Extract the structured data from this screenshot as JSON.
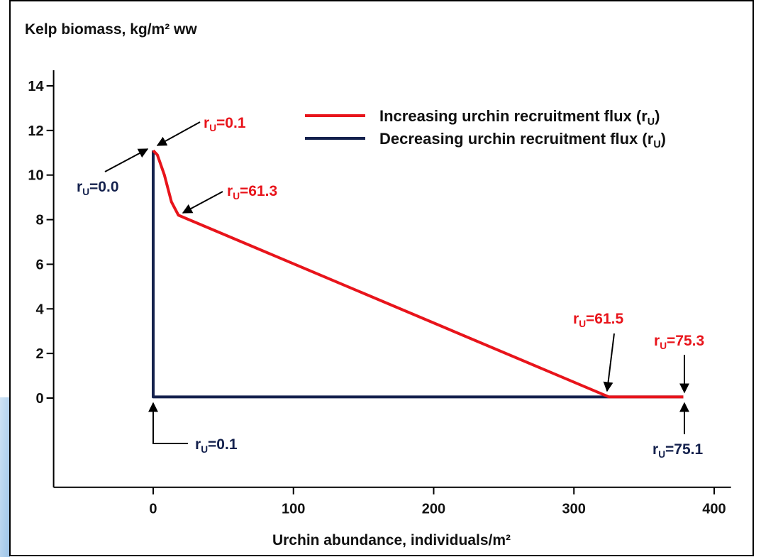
{
  "chart_data": {
    "type": "line",
    "y_axis_label": "Kelp biomass, kg/m² ww",
    "x_axis_label": "Urchin abundance, individuals/m²",
    "xlim": [
      -71,
      412
    ],
    "ylim": [
      -4,
      14.7
    ],
    "xticks": [
      0,
      100,
      200,
      300,
      400
    ],
    "yticks": [
      0,
      2,
      4,
      6,
      8,
      10,
      12,
      14
    ],
    "legend": "upper right",
    "series": [
      {
        "name": "Decreasing urchin recruitment flux (rU)",
        "color": "#14214d",
        "x": [
          0,
          0,
          378
        ],
        "values": [
          11.1,
          0.05,
          0.05
        ]
      },
      {
        "name": "Increasing urchin recruitment flux (rU)",
        "color": "#e8141b",
        "x": [
          0,
          3,
          8,
          13,
          18,
          325,
          378
        ],
        "values": [
          11.1,
          10.9,
          10.0,
          8.8,
          8.2,
          0.05,
          0.05
        ]
      }
    ],
    "annotations": [
      {
        "text": "rU=0.1",
        "color": "#e8141b"
      },
      {
        "text": "rU=0.0",
        "color": "#14214d"
      },
      {
        "text": "rU=61.3",
        "color": "#e8141b"
      },
      {
        "text": "rU=61.5",
        "color": "#e8141b"
      },
      {
        "text": "rU=75.3",
        "color": "#e8141b"
      },
      {
        "text": "rU=0.1",
        "color": "#14214d"
      },
      {
        "text": "rU=75.1",
        "color": "#14214d"
      }
    ]
  }
}
